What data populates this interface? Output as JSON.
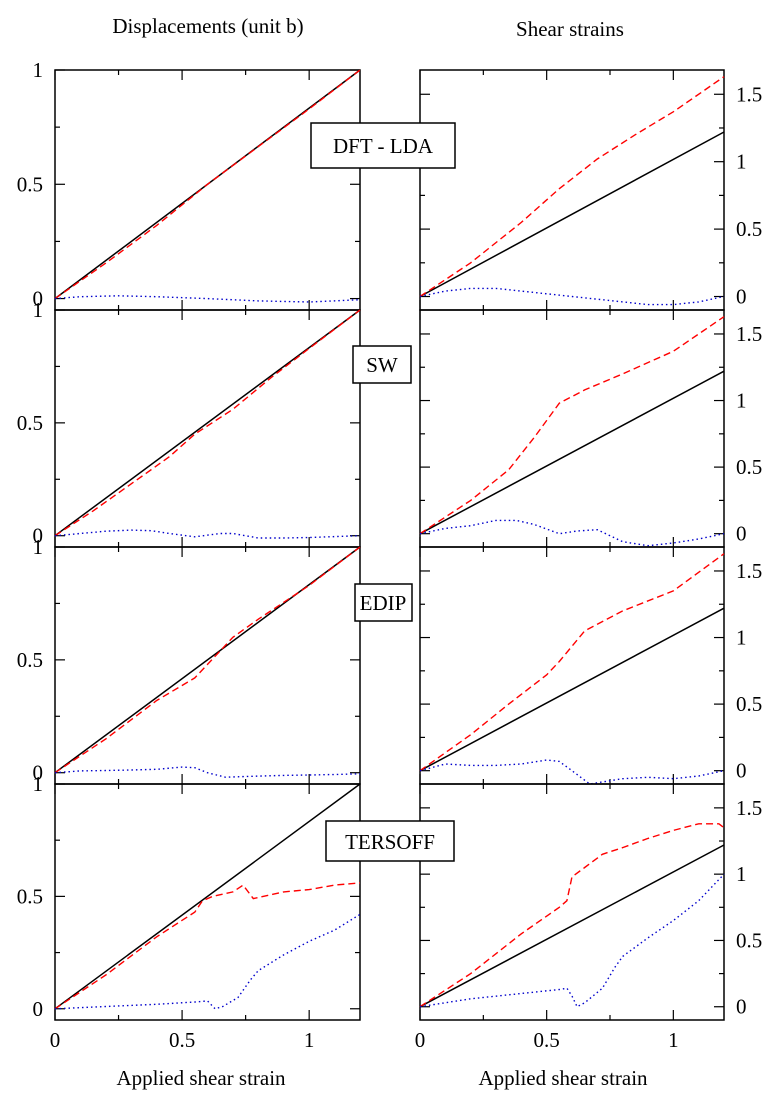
{
  "figure": {
    "left_column_title": "Displacements (unit b)",
    "right_column_title": "Shear strains",
    "x_axis_label": "Applied shear strain"
  },
  "colors": {
    "black_series": "#000000",
    "red_series": "#ff0000",
    "blue_series": "#0000cc"
  },
  "chart_data": [
    {
      "type": "line",
      "panel": "displacements",
      "label": "DFT - LDA",
      "xlim": [
        0,
        1.2
      ],
      "ylim": [
        -0.05,
        1
      ],
      "xticks": [
        "0",
        "0.5",
        "1"
      ],
      "yticks": [
        "0",
        "0.5",
        "1"
      ],
      "series": [
        {
          "x": [
            0,
            1.2
          ],
          "y": [
            0,
            1
          ]
        },
        {
          "x": [
            0,
            0.2,
            0.4,
            0.6,
            0.8,
            1.0,
            1.2
          ],
          "y": [
            0,
            0.155,
            0.32,
            0.5,
            0.665,
            0.83,
            1.0
          ]
        },
        {
          "x": [
            0,
            0.1,
            0.25,
            0.4,
            0.6,
            0.8,
            1.0,
            1.2
          ],
          "y": [
            0,
            0.008,
            0.012,
            0.008,
            0.0,
            -0.01,
            -0.015,
            -0.005
          ]
        }
      ]
    },
    {
      "type": "line",
      "panel": "shear_strains",
      "label": "DFT - LDA",
      "xlim": [
        0,
        1.2
      ],
      "ylim": [
        -0.1,
        1.68
      ],
      "xticks": [
        "0",
        "0.5",
        "1"
      ],
      "yticks": [
        "0",
        "0.5",
        "1",
        "1.5"
      ],
      "series": [
        {
          "x": [
            0,
            1.2
          ],
          "y": [
            0,
            1.22
          ]
        },
        {
          "x": [
            0,
            0.2,
            0.4,
            0.55,
            0.7,
            0.85,
            1.0,
            1.2
          ],
          "y": [
            0,
            0.25,
            0.55,
            0.8,
            1.02,
            1.2,
            1.37,
            1.63
          ]
        },
        {
          "x": [
            0,
            0.1,
            0.2,
            0.3,
            0.4,
            0.5,
            0.6,
            0.7,
            0.8,
            0.9,
            1.0,
            1.1,
            1.2
          ],
          "y": [
            0,
            0.04,
            0.06,
            0.06,
            0.04,
            0.02,
            0.0,
            -0.02,
            -0.04,
            -0.06,
            -0.06,
            -0.04,
            0.0
          ]
        }
      ]
    },
    {
      "type": "line",
      "panel": "displacements",
      "label": "SW",
      "xlim": [
        0,
        1.2
      ],
      "ylim": [
        -0.05,
        1
      ],
      "xticks": [
        "0",
        "0.5",
        "1"
      ],
      "yticks": [
        "0",
        "0.5",
        "1"
      ],
      "series": [
        {
          "x": [
            0,
            1.2
          ],
          "y": [
            0,
            1
          ]
        },
        {
          "x": [
            0,
            0.15,
            0.35,
            0.45,
            0.55,
            0.7,
            0.85,
            1.0,
            1.2
          ],
          "y": [
            0,
            0.11,
            0.27,
            0.35,
            0.45,
            0.56,
            0.7,
            0.83,
            1.0
          ]
        },
        {
          "x": [
            0,
            0.1,
            0.2,
            0.3,
            0.38,
            0.45,
            0.55,
            0.65,
            0.7,
            0.8,
            0.9,
            1.0,
            1.1,
            1.2
          ],
          "y": [
            0,
            0.01,
            0.02,
            0.025,
            0.022,
            0.01,
            -0.005,
            0.01,
            0.01,
            -0.01,
            -0.01,
            -0.008,
            -0.004,
            0.0
          ]
        }
      ]
    },
    {
      "type": "line",
      "panel": "shear_strains",
      "label": "SW",
      "xlim": [
        0,
        1.2
      ],
      "ylim": [
        -0.1,
        1.68
      ],
      "xticks": [
        "0",
        "0.5",
        "1"
      ],
      "yticks": [
        "0",
        "0.5",
        "1",
        "1.5"
      ],
      "series": [
        {
          "x": [
            0,
            1.2
          ],
          "y": [
            0,
            1.22
          ]
        },
        {
          "x": [
            0,
            0.2,
            0.35,
            0.45,
            0.55,
            0.65,
            0.8,
            1.0,
            1.2
          ],
          "y": [
            0,
            0.25,
            0.48,
            0.72,
            0.98,
            1.08,
            1.2,
            1.37,
            1.63
          ]
        },
        {
          "x": [
            0,
            0.1,
            0.2,
            0.3,
            0.38,
            0.45,
            0.55,
            0.62,
            0.7,
            0.8,
            0.9,
            1.0,
            1.1,
            1.2
          ],
          "y": [
            0,
            0.04,
            0.06,
            0.1,
            0.1,
            0.07,
            0.0,
            0.02,
            0.03,
            -0.06,
            -0.09,
            -0.07,
            -0.04,
            0.0
          ]
        }
      ]
    },
    {
      "type": "line",
      "panel": "displacements",
      "label": "EDIP",
      "xlim": [
        0,
        1.2
      ],
      "ylim": [
        -0.05,
        1
      ],
      "xticks": [
        "0",
        "0.5",
        "1"
      ],
      "yticks": [
        "0",
        "0.5",
        "1"
      ],
      "series": [
        {
          "x": [
            0,
            1.2
          ],
          "y": [
            0,
            1
          ]
        },
        {
          "x": [
            0,
            0.2,
            0.4,
            0.55,
            0.6,
            0.7,
            0.8,
            1.0,
            1.2
          ],
          "y": [
            0,
            0.15,
            0.32,
            0.42,
            0.48,
            0.6,
            0.68,
            0.83,
            1.0
          ]
        },
        {
          "x": [
            0,
            0.1,
            0.2,
            0.3,
            0.4,
            0.5,
            0.55,
            0.6,
            0.67,
            0.8,
            0.9,
            1.0,
            1.1,
            1.2
          ],
          "y": [
            0,
            0.008,
            0.01,
            0.012,
            0.015,
            0.025,
            0.022,
            0.0,
            -0.02,
            -0.015,
            -0.012,
            -0.01,
            -0.008,
            -0.005
          ]
        }
      ]
    },
    {
      "type": "line",
      "panel": "shear_strains",
      "label": "EDIP",
      "xlim": [
        0,
        1.2
      ],
      "ylim": [
        -0.1,
        1.68
      ],
      "xticks": [
        "0",
        "0.5",
        "1"
      ],
      "yticks": [
        "0",
        "0.5",
        "1",
        "1.5"
      ],
      "series": [
        {
          "x": [
            0,
            1.2
          ],
          "y": [
            0,
            1.22
          ]
        },
        {
          "x": [
            0,
            0.2,
            0.35,
            0.5,
            0.55,
            0.65,
            0.8,
            1.0,
            1.2
          ],
          "y": [
            0,
            0.27,
            0.5,
            0.72,
            0.82,
            1.05,
            1.2,
            1.35,
            1.63
          ]
        },
        {
          "x": [
            0,
            0.1,
            0.2,
            0.3,
            0.4,
            0.5,
            0.55,
            0.6,
            0.67,
            0.8,
            0.9,
            1.0,
            1.1,
            1.2
          ],
          "y": [
            0,
            0.05,
            0.04,
            0.04,
            0.05,
            0.08,
            0.07,
            0.0,
            -0.1,
            -0.06,
            -0.05,
            -0.06,
            -0.04,
            0.0
          ]
        }
      ]
    },
    {
      "type": "line",
      "panel": "displacements",
      "label": "TERSOFF",
      "xlim": [
        0,
        1.2
      ],
      "ylim": [
        -0.05,
        1
      ],
      "xticks": [
        "0",
        "0.5",
        "1"
      ],
      "yticks": [
        "0",
        "0.5",
        "1"
      ],
      "series": [
        {
          "x": [
            0,
            1.2
          ],
          "y": [
            0,
            1
          ]
        },
        {
          "x": [
            0,
            0.2,
            0.4,
            0.55,
            0.58,
            0.62,
            0.7,
            0.74,
            0.78,
            0.9,
            1.0,
            1.1,
            1.2
          ],
          "y": [
            0,
            0.15,
            0.32,
            0.43,
            0.48,
            0.5,
            0.52,
            0.55,
            0.49,
            0.52,
            0.53,
            0.55,
            0.56
          ]
        },
        {
          "x": [
            0,
            0.2,
            0.4,
            0.55,
            0.6,
            0.63,
            0.66,
            0.72,
            0.77,
            0.8,
            0.9,
            1.0,
            1.1,
            1.2
          ],
          "y": [
            0,
            0.01,
            0.02,
            0.03,
            0.035,
            0.0,
            0.01,
            0.05,
            0.13,
            0.17,
            0.24,
            0.3,
            0.35,
            0.42
          ]
        }
      ]
    },
    {
      "type": "line",
      "panel": "shear_strains",
      "label": "TERSOFF",
      "xlim": [
        0,
        1.2
      ],
      "ylim": [
        -0.1,
        1.68
      ],
      "xticks": [
        "0",
        "0.5",
        "1"
      ],
      "yticks": [
        "0",
        "0.5",
        "1",
        "1.5"
      ],
      "series": [
        {
          "x": [
            0,
            1.2
          ],
          "y": [
            0,
            1.22
          ]
        },
        {
          "x": [
            0,
            0.2,
            0.4,
            0.55,
            0.58,
            0.6,
            0.65,
            0.72,
            0.8,
            0.9,
            1.0,
            1.1,
            1.18,
            1.2
          ],
          "y": [
            0,
            0.25,
            0.55,
            0.75,
            0.8,
            0.98,
            1.05,
            1.15,
            1.2,
            1.27,
            1.33,
            1.38,
            1.38,
            1.35
          ]
        },
        {
          "x": [
            0,
            0.2,
            0.4,
            0.55,
            0.58,
            0.6,
            0.62,
            0.65,
            0.72,
            0.77,
            0.8,
            0.9,
            1.0,
            1.1,
            1.2
          ],
          "y": [
            0,
            0.06,
            0.1,
            0.13,
            0.14,
            0.08,
            0.0,
            0.03,
            0.14,
            0.3,
            0.38,
            0.52,
            0.65,
            0.8,
            1.0
          ]
        }
      ]
    }
  ]
}
